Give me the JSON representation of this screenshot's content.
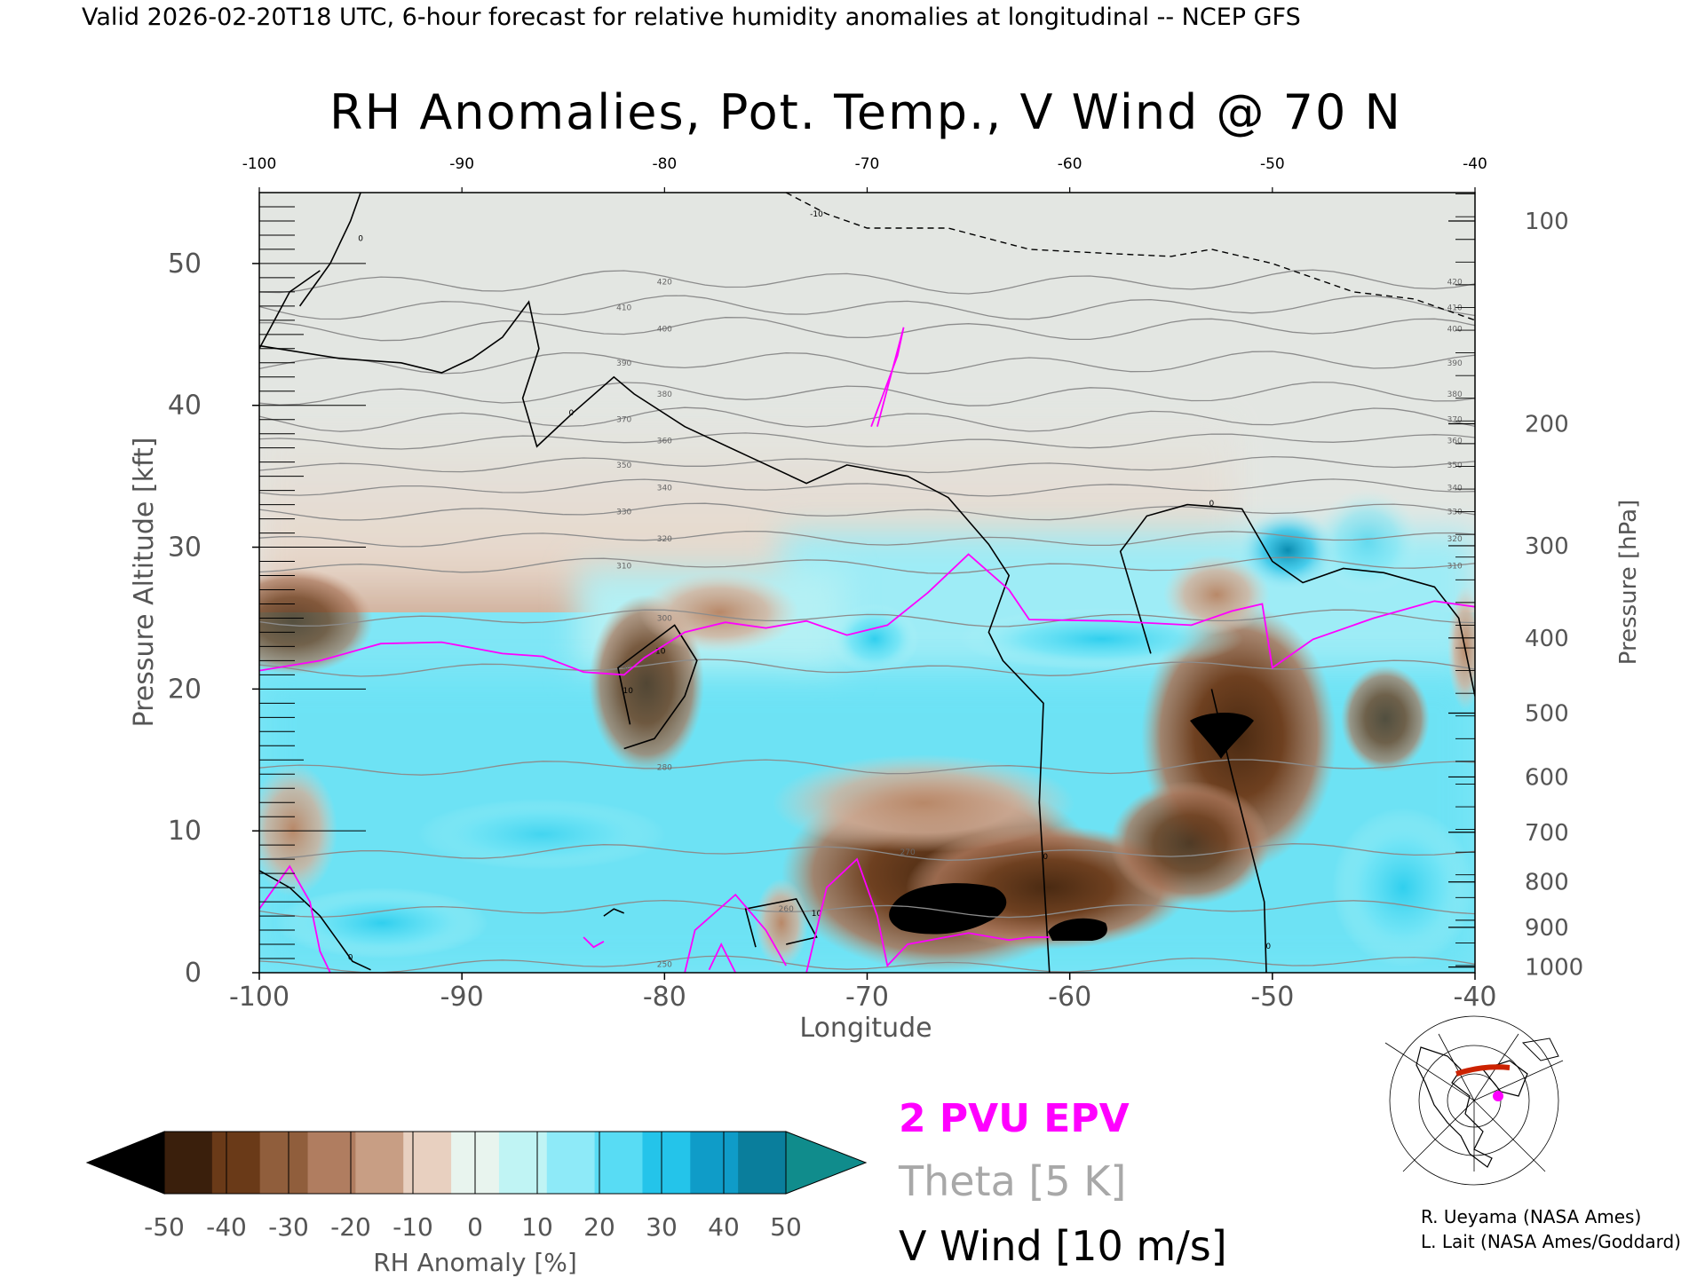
{
  "header": {
    "valid_line": "Valid 2026-02-20T18 UTC, 6-hour forecast for relative humidity anomalies at longitudinal -- NCEP GFS"
  },
  "chart_data": {
    "type": "heatmap",
    "title": "RH Anomalies, Pot. Temp., V Wind @ 70 N",
    "xlabel": "Longitude",
    "ylabel_left": "Pressure Altitude [kft]",
    "ylabel_right": "Pressure [hPa]",
    "xlim": [
      -100,
      -40
    ],
    "ylim_kft": [
      0,
      55
    ],
    "x_ticks": [
      "-100",
      "-90",
      "-80",
      "-70",
      "-60",
      "-50",
      "-40"
    ],
    "x_ticks_top": [
      "-100",
      "-90",
      "-80",
      "-70",
      "-60",
      "-50",
      "-40"
    ],
    "y_ticks_left": [
      "0",
      "10",
      "20",
      "30",
      "40",
      "50"
    ],
    "y_ticks_right": [
      {
        "kft": 53.0,
        "label": "100"
      },
      {
        "kft": 38.7,
        "label": "200"
      },
      {
        "kft": 30.1,
        "label": "300"
      },
      {
        "kft": 23.6,
        "label": "400"
      },
      {
        "kft": 18.3,
        "label": "500"
      },
      {
        "kft": 13.8,
        "label": "600"
      },
      {
        "kft": 9.9,
        "label": "700"
      },
      {
        "kft": 6.4,
        "label": "800"
      },
      {
        "kft": 3.2,
        "label": "900"
      },
      {
        "kft": 0.4,
        "label": "1000"
      }
    ],
    "theta_isolines": [
      {
        "label": "250",
        "kft": 0.6
      },
      {
        "label": "260",
        "kft": 4.5
      },
      {
        "label": "270",
        "kft": 8.5
      },
      {
        "label": "280",
        "kft": 14.5
      },
      {
        "label": "290",
        "kft": 21.5
      },
      {
        "label": "300",
        "kft": 25.0
      },
      {
        "label": "310",
        "kft": 28.7
      },
      {
        "label": "320",
        "kft": 30.6
      },
      {
        "label": "330",
        "kft": 32.5
      },
      {
        "label": "340",
        "kft": 34.2
      },
      {
        "label": "350",
        "kft": 35.8
      },
      {
        "label": "360",
        "kft": 37.5
      },
      {
        "label": "370",
        "kft": 39.0
      },
      {
        "label": "380",
        "kft": 40.8
      },
      {
        "label": "390",
        "kft": 43.0
      },
      {
        "label": "400",
        "kft": 45.4
      },
      {
        "label": "410",
        "kft": 46.9
      },
      {
        "label": "420",
        "kft": 48.7
      }
    ],
    "epv_2pvu": {
      "name": "2 PVU EPV",
      "color": "#ff00ff",
      "tropopause": [
        [
          -100,
          21.3
        ],
        [
          -97,
          22.0
        ],
        [
          -94,
          23.2
        ],
        [
          -91,
          23.3
        ],
        [
          -88,
          22.5
        ],
        [
          -86,
          22.3
        ],
        [
          -84,
          21.2
        ],
        [
          -82,
          21.0
        ],
        [
          -81,
          22.2
        ],
        [
          -79,
          24.0
        ],
        [
          -77,
          24.7
        ],
        [
          -75,
          24.3
        ],
        [
          -73,
          24.8
        ],
        [
          -71,
          23.8
        ],
        [
          -69,
          24.5
        ],
        [
          -67,
          26.8
        ],
        [
          -65,
          29.5
        ],
        [
          -63,
          27.0
        ],
        [
          -62,
          24.9
        ],
        [
          -58,
          24.8
        ],
        [
          -54,
          24.5
        ],
        [
          -52,
          25.5
        ],
        [
          -50.5,
          26.0
        ],
        [
          -50,
          21.5
        ],
        [
          -48,
          23.5
        ],
        [
          -45,
          25.0
        ],
        [
          -42,
          26.2
        ],
        [
          -40,
          25.8
        ]
      ],
      "stratospheric_filament": [
        [
          -69.8,
          38.5
        ],
        [
          -68.5,
          43.5
        ],
        [
          -68.2,
          45.5
        ],
        [
          -69.5,
          38.5
        ]
      ],
      "near_surface": [
        [
          [
            -100,
            4.5
          ],
          [
            -98.5,
            7.5
          ],
          [
            -97.5,
            5.0
          ],
          [
            -97,
            1.5
          ],
          [
            -96.5,
            0
          ]
        ],
        [
          [
            -84,
            2.5
          ],
          [
            -83.5,
            1.8
          ],
          [
            -83,
            2.2
          ]
        ],
        [
          [
            -79,
            0
          ],
          [
            -78.5,
            3.0
          ],
          [
            -76.5,
            5.5
          ],
          [
            -75,
            3.0
          ],
          [
            -74,
            0.5
          ]
        ],
        [
          [
            -76.5,
            0
          ],
          [
            -77.2,
            2.0
          ],
          [
            -77.8,
            0.2
          ]
        ],
        [
          [
            -73,
            0
          ],
          [
            -72,
            6.0
          ],
          [
            -70.5,
            8.0
          ],
          [
            -69.5,
            4.0
          ],
          [
            -69,
            0.5
          ],
          [
            -68,
            2.0
          ],
          [
            -65,
            2.8
          ],
          [
            -63,
            2.3
          ],
          [
            -62,
            2.5
          ],
          [
            -61,
            2.5
          ]
        ]
      ]
    },
    "theta_legend": "Theta [5 K]",
    "vwind_legend": "V Wind [10 m/s]",
    "vwind_zero_contour": [
      [
        [
          -98,
          47
        ],
        [
          -96.5,
          50
        ],
        [
          -95.5,
          53
        ],
        [
          -95,
          55
        ]
      ],
      [
        [
          -100,
          44
        ],
        [
          -98.5,
          48
        ],
        [
          -97,
          49.5
        ]
      ],
      [
        [
          -100,
          44.2
        ],
        [
          -96,
          43.3
        ],
        [
          -93,
          43.0
        ],
        [
          -91,
          42.3
        ],
        [
          -89.5,
          43.3
        ],
        [
          -88,
          44.8
        ],
        [
          -86.7,
          47.3
        ],
        [
          -86.2,
          44.0
        ],
        [
          -87,
          40.5
        ],
        [
          -86.3,
          37.1
        ],
        [
          -84.5,
          39.5
        ],
        [
          -82.5,
          42.0
        ],
        [
          -81.5,
          40.8
        ],
        [
          -79,
          38.5
        ],
        [
          -76,
          36.5
        ],
        [
          -73,
          34.5
        ],
        [
          -71,
          35.8
        ],
        [
          -68,
          35.0
        ],
        [
          -66,
          33.5
        ],
        [
          -64,
          30.2
        ],
        [
          -63,
          28.0
        ],
        [
          -64,
          24.0
        ],
        [
          -63.3,
          22.0
        ],
        [
          -61.3,
          19.0
        ],
        [
          -61.5,
          12.0
        ],
        [
          -61.0,
          0
        ]
      ],
      [
        [
          -56,
          22.5
        ],
        [
          -57.5,
          29.7
        ],
        [
          -56.2,
          32.2
        ],
        [
          -54.2,
          33.0
        ],
        [
          -51.5,
          32.7
        ],
        [
          -50,
          29.0
        ],
        [
          -48.5,
          27.5
        ],
        [
          -46.5,
          28.5
        ],
        [
          -44.5,
          28.2
        ],
        [
          -42,
          27.2
        ],
        [
          -40.8,
          25.0
        ],
        [
          -40,
          19.5
        ]
      ],
      [
        [
          -81.7,
          17.5
        ],
        [
          -82.3,
          21.5
        ],
        [
          -79.5,
          24.5
        ],
        [
          -78.4,
          22.0
        ],
        [
          -79,
          19.5
        ],
        [
          -80.5,
          16.5
        ],
        [
          -82,
          15.8
        ]
      ],
      [
        [
          -100,
          7.2
        ],
        [
          -98.5,
          6.0
        ],
        [
          -97,
          4.0
        ],
        [
          -96,
          2.0
        ],
        [
          -95.4,
          0.8
        ],
        [
          -94.5,
          0.2
        ]
      ],
      [
        [
          -75.5,
          1.8
        ],
        [
          -76,
          4.5
        ],
        [
          -73.5,
          5.2
        ],
        [
          -72.5,
          2.5
        ],
        [
          -74,
          2.0
        ]
      ],
      [
        [
          -83,
          4.0
        ],
        [
          -82.5,
          4.5
        ],
        [
          -82,
          4.2
        ]
      ],
      [
        [
          -53,
          20.0
        ],
        [
          -52,
          14.0
        ],
        [
          -50.4,
          5.0
        ],
        [
          -50.3,
          0
        ]
      ]
    ],
    "vwind_dashed_10": [
      [
        -74,
        55
      ],
      [
        -72,
        53.5
      ],
      [
        -70,
        52.5
      ],
      [
        -66,
        52.5
      ],
      [
        -62,
        51.0
      ],
      [
        -58,
        50.7
      ],
      [
        -55,
        50.5
      ],
      [
        -53,
        51.0
      ],
      [
        -50,
        50.0
      ],
      [
        -46,
        48.0
      ],
      [
        -43,
        47.5
      ],
      [
        -41,
        46.5
      ],
      [
        -40,
        46.0
      ]
    ],
    "contour_labels": [
      "10",
      "0",
      "-10"
    ],
    "rh_anomaly_colorbar": {
      "label": "RH Anomaly [%]",
      "ticks": [
        "-50",
        "-40",
        "-30",
        "-20",
        "-10",
        "0",
        "10",
        "20",
        "30",
        "40",
        "50"
      ],
      "colors": [
        "#000000",
        "#3a1f0c",
        "#6a3a18",
        "#905e3c",
        "#b07d60",
        "#c89e84",
        "#e8d0c0",
        "#e8f4ee",
        "#c0f4f4",
        "#8eeaf8",
        "#58dcf4",
        "#24c4ea",
        "#0f9cc8",
        "#0a7e9c",
        "#108c8c"
      ]
    }
  },
  "inset_map": {
    "highlight_color": "#cc2200",
    "marker_color": "#ff00ff"
  },
  "credits": {
    "line1": "R. Ueyama (NASA Ames)",
    "line2": "L. Lait (NASA Ames/Goddard)"
  }
}
